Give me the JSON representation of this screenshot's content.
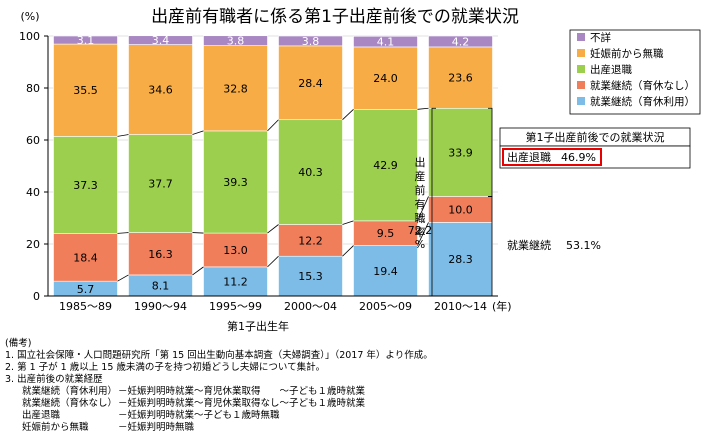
{
  "chart_data": {
    "type": "bar",
    "stacked": true,
    "percent": true,
    "title": "出産前有職者に係る第1子出産前後での就業状況",
    "ylabel": "(%)",
    "xlabel": "第1子出生年",
    "x_unit": "(年)",
    "ylim": [
      0,
      100
    ],
    "yticks": [
      "0",
      "20",
      "40",
      "60",
      "80",
      "100"
    ],
    "categories": [
      "1985～89",
      "1990～94",
      "1995～99",
      "2000～04",
      "2005～09",
      "2010～14"
    ],
    "series": [
      {
        "name": "就業継続（育休利用）",
        "color": "#7dbce7",
        "values": [
          5.7,
          8.1,
          11.2,
          15.3,
          19.4,
          28.3
        ]
      },
      {
        "name": "就業継続（育休なし）",
        "color": "#f07e5b",
        "values": [
          18.4,
          16.3,
          13.0,
          12.2,
          9.5,
          10.0
        ]
      },
      {
        "name": "出産退職",
        "color": "#9ccf4e",
        "values": [
          37.3,
          37.7,
          39.3,
          40.3,
          42.9,
          33.9
        ]
      },
      {
        "name": "妊娠前から無職",
        "color": "#f7ac45",
        "values": [
          35.5,
          34.6,
          32.8,
          28.4,
          24.0,
          23.6
        ]
      },
      {
        "name": "不詳",
        "color": "#a887c2",
        "values": [
          3.1,
          3.4,
          3.8,
          3.8,
          4.1,
          4.2
        ]
      }
    ],
    "value_labels": [
      [
        "5.7",
        "8.1",
        "11.2",
        "15.3",
        "19.4",
        "28.3"
      ],
      [
        "18.4",
        "16.3",
        "13.0",
        "12.2",
        "9.5",
        "10.0"
      ],
      [
        "37.3",
        "37.7",
        "39.3",
        "40.3",
        "42.9",
        "33.9"
      ],
      [
        "35.5",
        "34.6",
        "32.8",
        "28.4",
        "24.0",
        "23.6"
      ],
      [
        "3.1",
        "3.4",
        "3.8",
        "3.8",
        "4.1",
        "4.2"
      ]
    ],
    "legend_position": "top-right",
    "annotations": {
      "rate_label": "出産前有職率",
      "rate_value": "72.2",
      "rate_unit": "%",
      "side_box_title": "第1子出産前後での就業状況",
      "retire_label": "出産退職",
      "retire_value": "46.9%",
      "continue_label": "就業継続",
      "continue_value": "53.1%"
    }
  },
  "notes": {
    "header": "(備考)",
    "lines": [
      "1. 国立社会保障・人口問題研究所「第 15 回出生動向基本調査（夫婦調査）」（2017 年）より作成。",
      "2. 第 1 子が 1 歳以上 15 歳未満の子を持つ初婚どうし夫婦について集計。",
      "3. 出産前後の就業経歴"
    ],
    "rows": [
      {
        "label": "就業継続（育休利用）",
        "desc": "－妊娠判明時就業～育児休業取得　　～子ども１歳時就業"
      },
      {
        "label": "就業継続（育休なし）",
        "desc": "－妊娠判明時就業～育児休業取得なし～子ども１歳時就業"
      },
      {
        "label": "出産退職",
        "desc": "－妊娠判明時就業～子ども１歳時無職"
      },
      {
        "label": "妊娠前から無職",
        "desc": "－妊娠判明時無職"
      }
    ]
  }
}
